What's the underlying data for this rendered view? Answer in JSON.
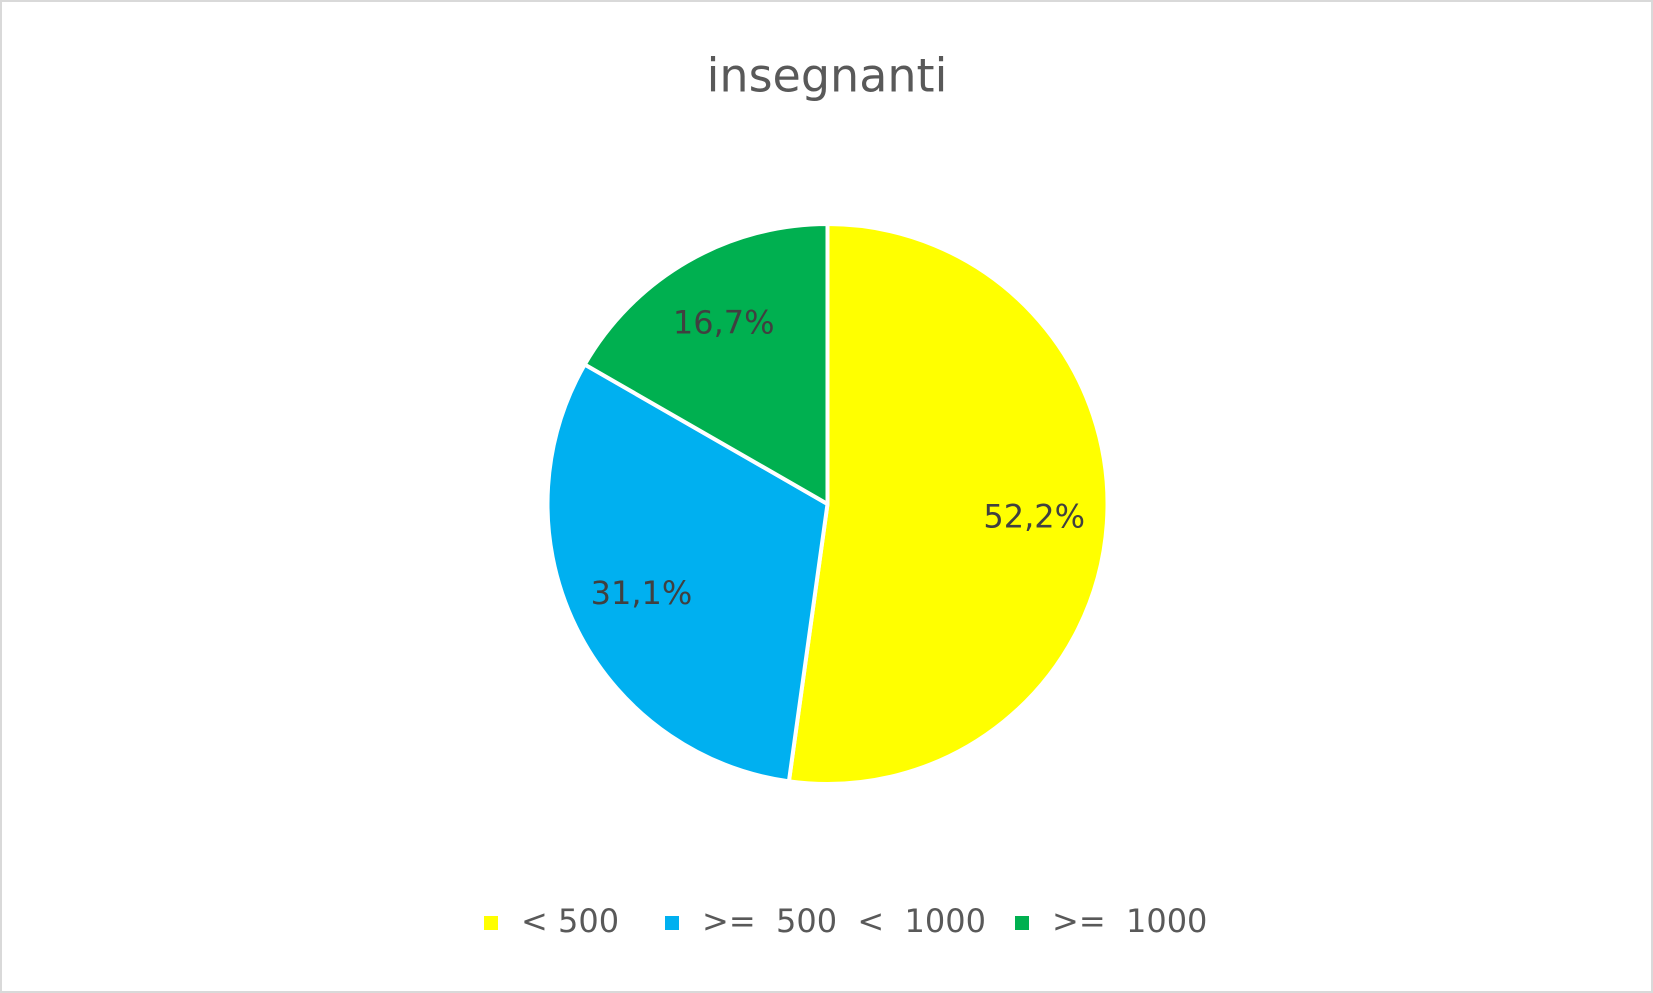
{
  "chart_data": {
    "type": "pie",
    "title": "insegnanti",
    "categories": [
      "< 500",
      ">=  500  <  1000",
      ">=  1000"
    ],
    "values": [
      52.2,
      31.1,
      16.7
    ],
    "value_labels": [
      "52,2%",
      "31,1%",
      "16,7%"
    ],
    "colors": [
      "#ffff00",
      "#00b0f0",
      "#00b050"
    ],
    "legend": "bottom"
  }
}
